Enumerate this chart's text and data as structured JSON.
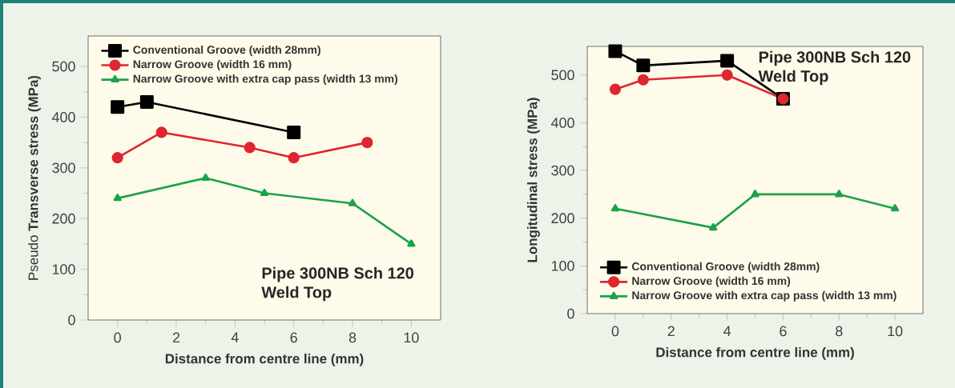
{
  "chart_data": [
    {
      "type": "line",
      "xlabel": "Distance from centre line (mm)",
      "ylabel": "Pseudo **Transverse stress (MPa)**",
      "xlim": [
        -1,
        11
      ],
      "ylim": [
        0,
        560
      ],
      "xticks": [
        0,
        2,
        4,
        6,
        8,
        10
      ],
      "yticks": [
        0,
        100,
        200,
        300,
        400,
        500
      ],
      "legend": "top left",
      "grid": false,
      "line_style": "solid",
      "annotations": [
        "Pipe 300NB Sch 120",
        "Weld Top"
      ],
      "series": [
        {
          "name": "Conventional Groove (width 28mm)",
          "color": "#000000",
          "marker": "square",
          "x": [
            0,
            1,
            6
          ],
          "values": [
            420,
            430,
            370
          ]
        },
        {
          "name": "Narrow Groove (width 16 mm)",
          "color": "#e0262e",
          "marker": "circle",
          "x": [
            0,
            1.5,
            4.5,
            6,
            8.5
          ],
          "values": [
            320,
            370,
            340,
            320,
            350
          ]
        },
        {
          "name": "Narrow Groove with extra cap pass (width 13 mm)",
          "color": "#1aa34a",
          "marker": "triangle",
          "x": [
            0,
            3,
            5,
            8,
            10
          ],
          "values": [
            240,
            280,
            250,
            230,
            150
          ]
        }
      ]
    },
    {
      "type": "line",
      "xlabel": "Distance from centre line (mm)",
      "ylabel": "Longitudinal stress (MPa)",
      "xlim": [
        -1,
        11
      ],
      "ylim": [
        0,
        560
      ],
      "xticks": [
        0,
        2,
        4,
        6,
        8,
        10
      ],
      "yticks": [
        0,
        100,
        200,
        300,
        400,
        500
      ],
      "legend": "bottom left",
      "grid": false,
      "line_style": "solid",
      "annotations": [
        "Pipe 300NB Sch 120",
        "Weld Top"
      ],
      "series": [
        {
          "name": "Conventional Groove (width 28mm)",
          "color": "#000000",
          "marker": "square",
          "x": [
            0,
            1,
            4,
            6
          ],
          "values": [
            550,
            520,
            530,
            450
          ]
        },
        {
          "name": "Narrow Groove (width 16 mm)",
          "color": "#e0262e",
          "marker": "circle",
          "x": [
            0,
            1,
            4,
            6
          ],
          "values": [
            470,
            490,
            500,
            450
          ]
        },
        {
          "name": "Narrow Groove with extra cap pass (width 13 mm)",
          "color": "#1aa34a",
          "marker": "triangle",
          "x": [
            0,
            3.5,
            5,
            8,
            10
          ],
          "values": [
            220,
            180,
            250,
            250,
            220
          ]
        }
      ]
    }
  ]
}
